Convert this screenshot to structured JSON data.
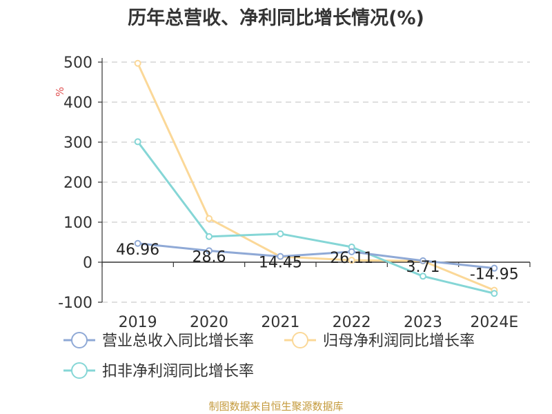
{
  "title": "历年总营收、净利同比增长情况(%)",
  "source": "制图数据来自恒生聚源数据库",
  "chart_data": {
    "type": "line",
    "categories": [
      "2019",
      "2020",
      "2021",
      "2022",
      "2023",
      "2024E"
    ],
    "y_unit": "%",
    "ylim": [
      -100,
      500
    ],
    "yticks": [
      -100,
      0,
      100,
      200,
      300,
      400,
      500
    ],
    "grid": true,
    "legend_position": "bottom-left",
    "series": [
      {
        "name": "营业总收入同比增长率",
        "color": "#8fa9d6",
        "values": [
          46.96,
          28.6,
          14.45,
          26.11,
          3.71,
          -14.95
        ],
        "labels": [
          "46.96",
          "28.6",
          "14.45",
          "26.11",
          "3.71",
          "-14.95"
        ]
      },
      {
        "name": "归母净利润同比增长率",
        "color": "#fbd898",
        "values": [
          497,
          109,
          14,
          5,
          3,
          -70
        ]
      },
      {
        "name": "扣非净利润同比增长率",
        "color": "#85d6d6",
        "values": [
          301,
          64,
          71,
          38,
          -35,
          -78
        ]
      }
    ]
  }
}
